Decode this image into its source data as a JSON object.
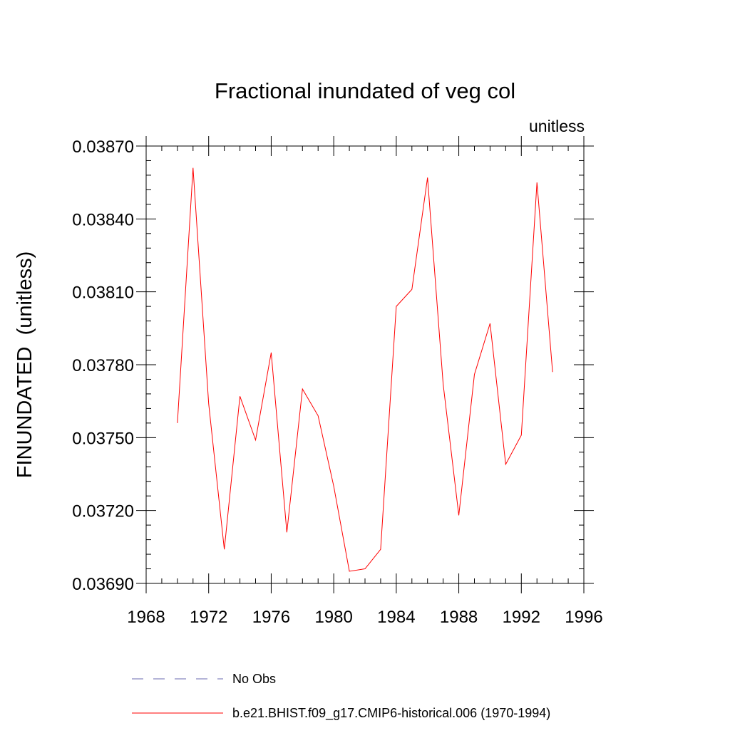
{
  "chart_data": {
    "type": "line",
    "title": "Fractional inundated of veg col",
    "subtitle_right": "unitless",
    "ylabel": "FINUNDATED  (unitless)",
    "xlabel": "",
    "xlim": [
      1968,
      1996
    ],
    "ylim": [
      0.0369,
      0.0387
    ],
    "x_ticks": [
      1968,
      1972,
      1976,
      1980,
      1984,
      1988,
      1992,
      1996
    ],
    "x_tick_labels": [
      "1968",
      "1972",
      "1976",
      "1980",
      "1984",
      "1988",
      "1992",
      "1996"
    ],
    "y_ticks": [
      0.0369,
      0.0372,
      0.0375,
      0.0378,
      0.0381,
      0.0384,
      0.0387
    ],
    "y_tick_labels": [
      "0.03690",
      "0.03720",
      "0.03750",
      "0.03780",
      "0.03810",
      "0.03840",
      "0.03870"
    ],
    "grid": false,
    "legend_placement": "bottom",
    "series": [
      {
        "name": "b.e21.BHIST.f09_g17.CMIP6-historical.006 (1970-1994)",
        "color": "#ff0000",
        "line_style": "solid",
        "x": [
          1970,
          1971,
          1972,
          1973,
          1974,
          1975,
          1976,
          1977,
          1978,
          1979,
          1980,
          1981,
          1982,
          1983,
          1984,
          1985,
          1986,
          1987,
          1988,
          1989,
          1990,
          1991,
          1992,
          1993,
          1994
        ],
        "y": [
          0.03756,
          0.03861,
          0.03764,
          0.03704,
          0.03767,
          0.03749,
          0.03785,
          0.03711,
          0.0377,
          0.03759,
          0.0373,
          0.03695,
          0.03696,
          0.03704,
          0.03804,
          0.03811,
          0.03857,
          0.03772,
          0.03718,
          0.03776,
          0.03797,
          0.03739,
          0.03751,
          0.03855,
          0.03777
        ]
      }
    ],
    "legend": [
      {
        "label": "No Obs",
        "color": "#6a6ab0",
        "line_style": "dashed"
      },
      {
        "label": "b.e21.BHIST.f09_g17.CMIP6-historical.006 (1970-1994)",
        "color": "#ff0000",
        "line_style": "solid"
      }
    ]
  }
}
